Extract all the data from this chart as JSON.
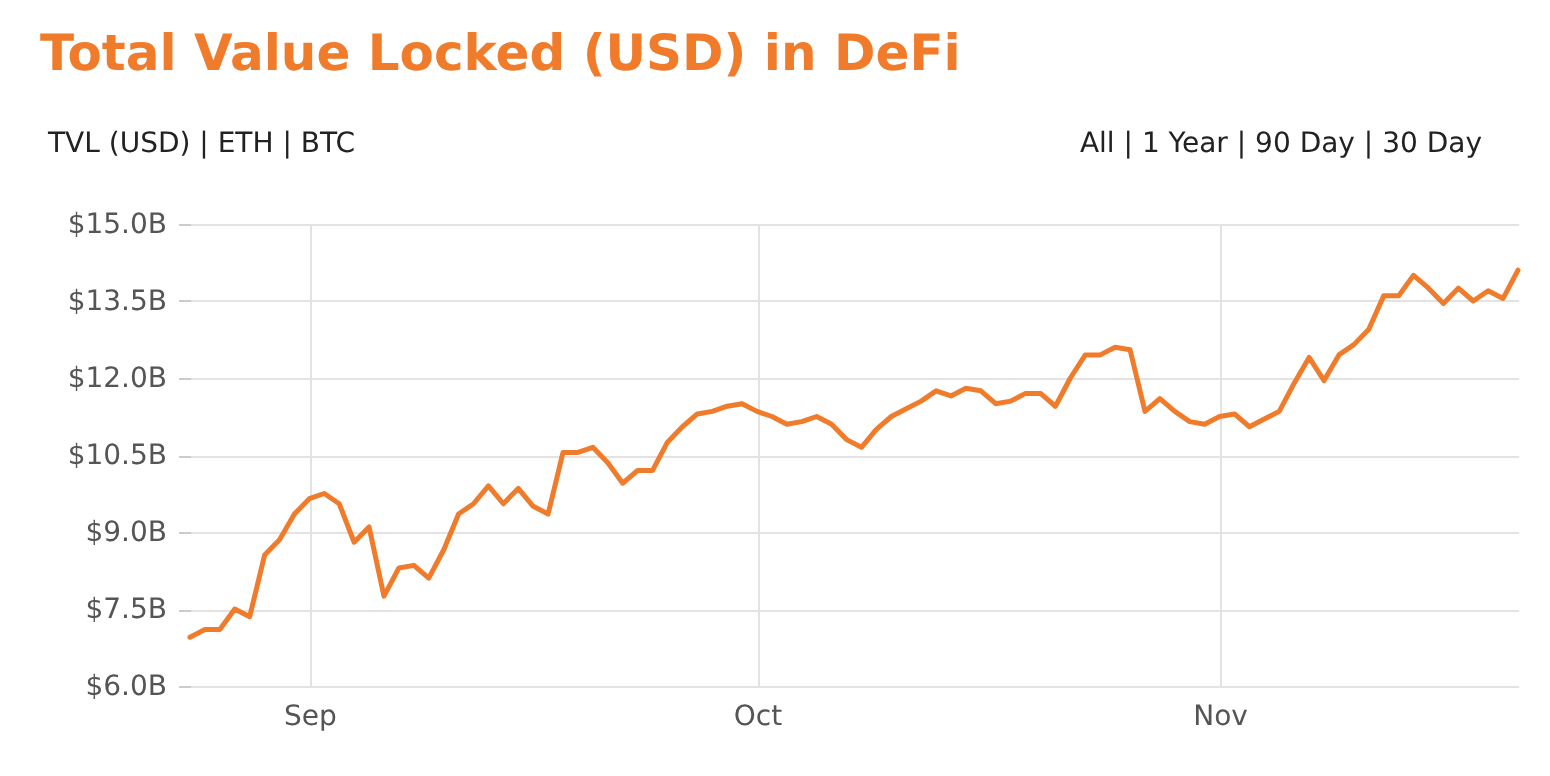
{
  "chart_data": {
    "type": "line",
    "title": "Total Value Locked (USD) in DeFi",
    "annotations": [
      "TVL (USD) | ETH | BTC",
      "All | 1 Year | 90 Day | 30 Day"
    ],
    "x": [
      "--08-24",
      "--08-25",
      "--08-26",
      "--08-27",
      "--08-28",
      "--08-29",
      "--08-30",
      "--08-31",
      "--09-01",
      "--09-02",
      "--09-03",
      "--09-04",
      "--09-05",
      "--09-06",
      "--09-07",
      "--09-08",
      "--09-09",
      "--09-10",
      "--09-11",
      "--09-12",
      "--09-13",
      "--09-14",
      "--09-15",
      "--09-16",
      "--09-17",
      "--09-18",
      "--09-19",
      "--09-20",
      "--09-21",
      "--09-22",
      "--09-23",
      "--09-24",
      "--09-25",
      "--09-26",
      "--09-27",
      "--09-28",
      "--09-29",
      "--09-30",
      "--10-01",
      "--10-02",
      "--10-03",
      "--10-04",
      "--10-05",
      "--10-06",
      "--10-07",
      "--10-08",
      "--10-09",
      "--10-10",
      "--10-11",
      "--10-12",
      "--10-13",
      "--10-14",
      "--10-15",
      "--10-16",
      "--10-17",
      "--10-18",
      "--10-19",
      "--10-20",
      "--10-21",
      "--10-22",
      "--10-23",
      "--10-24",
      "--10-25",
      "--10-26",
      "--10-27",
      "--10-28",
      "--10-29",
      "--10-30",
      "--10-31",
      "--11-01",
      "--11-02",
      "--11-03",
      "--11-04",
      "--11-05",
      "--11-06",
      "--11-07",
      "--11-08",
      "--11-09",
      "--11-10",
      "--11-11",
      "--11-12",
      "--11-13",
      "--11-14",
      "--11-15",
      "--11-16",
      "--11-17",
      "--11-18",
      "--11-19",
      "--11-20",
      "--11-21"
    ],
    "series": [
      {
        "color": "#f07b2a",
        "values": [
          6.95,
          7.1,
          7.1,
          7.5,
          7.35,
          8.55,
          8.85,
          9.35,
          9.65,
          9.75,
          9.55,
          8.8,
          9.1,
          7.75,
          8.3,
          8.35,
          8.1,
          8.65,
          9.35,
          9.55,
          9.9,
          9.55,
          9.85,
          9.5,
          9.35,
          10.55,
          10.55,
          10.65,
          10.35,
          9.95,
          10.2,
          10.2,
          10.75,
          11.05,
          11.3,
          11.35,
          11.45,
          11.5,
          11.35,
          11.25,
          11.1,
          11.15,
          11.25,
          11.1,
          10.8,
          10.65,
          11.0,
          11.25,
          11.4,
          11.55,
          11.75,
          11.65,
          11.8,
          11.75,
          11.5,
          11.55,
          11.7,
          11.7,
          11.45,
          12.0,
          12.45,
          12.45,
          12.6,
          12.55,
          11.35,
          11.6,
          11.35,
          11.15,
          11.1,
          11.25,
          11.3,
          11.05,
          11.2,
          11.35,
          11.9,
          12.4,
          11.95,
          12.45,
          12.65,
          12.95,
          13.6,
          13.6,
          14.0,
          13.75,
          13.45,
          13.75,
          13.5,
          13.7,
          13.55,
          14.1
        ]
      }
    ],
    "xlim": [
      "--08-24",
      "--11-21"
    ],
    "xticks": [
      {
        "value": "--09-01",
        "label": "Sep"
      },
      {
        "value": "--10-01",
        "label": "Oct"
      },
      {
        "value": "--11-01",
        "label": "Nov"
      }
    ],
    "ylim": [
      6,
      15
    ],
    "yticks": [
      {
        "value": 6,
        "label": "$6.0B"
      },
      {
        "value": 7.5,
        "label": "$7.5B"
      },
      {
        "value": 9,
        "label": "$9.0B"
      },
      {
        "value": 10.5,
        "label": "$10.5B"
      },
      {
        "value": 12,
        "label": "$12.0B"
      },
      {
        "value": 13.5,
        "label": "$13.5B"
      },
      {
        "value": 15,
        "label": "$15.0B"
      }
    ],
    "grid": true,
    "marker": "none",
    "line_style": "solid"
  }
}
